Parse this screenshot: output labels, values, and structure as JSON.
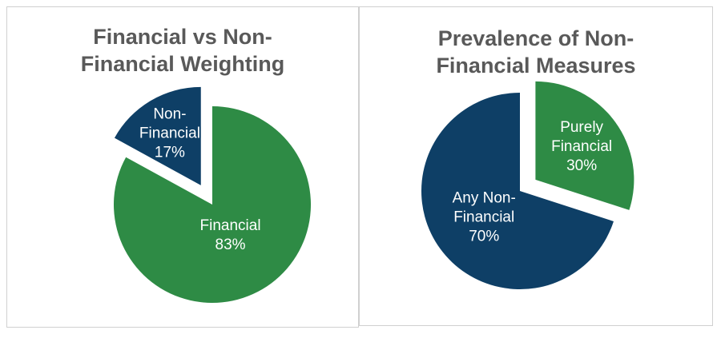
{
  "colors": {
    "financial": "#2e8b45",
    "non_financial": "#0e3f66",
    "title": "#595959",
    "label": "#ffffff"
  },
  "chart_data": [
    {
      "type": "pie",
      "title_lines": [
        "Financial vs Non-",
        "Financial Weighting"
      ],
      "slices": [
        {
          "name": "Non-Financial",
          "label_lines": [
            "Non-",
            "Financial",
            "17%"
          ],
          "value": 17,
          "exploded": true,
          "color": "#0e3f66"
        },
        {
          "name": "Financial",
          "label_lines": [
            "Financial",
            "83%"
          ],
          "value": 83,
          "exploded": false,
          "color": "#2e8b45"
        }
      ]
    },
    {
      "type": "pie",
      "title_lines": [
        "Prevalence of Non-",
        "Financial Measures"
      ],
      "slices": [
        {
          "name": "Purely Financial",
          "label_lines": [
            "Purely",
            "Financial",
            "30%"
          ],
          "value": 30,
          "exploded": true,
          "color": "#2e8b45"
        },
        {
          "name": "Any Non-Financial",
          "label_lines": [
            "Any Non-",
            "Financial",
            "70%"
          ],
          "value": 70,
          "exploded": false,
          "color": "#0e3f66"
        }
      ]
    }
  ]
}
